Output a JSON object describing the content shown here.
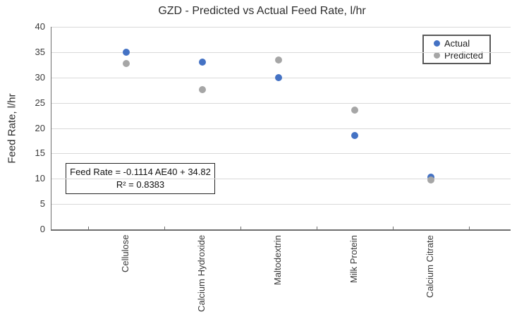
{
  "chart_data": {
    "type": "scatter",
    "title": "GZD - Predicted vs Actual Feed Rate, l/hr",
    "ylabel": "Feed Rate, l/hr",
    "xlabel": "",
    "ylim": [
      0,
      40
    ],
    "ytick_step": 5,
    "grid": "horizontal",
    "legend_position": "top-right",
    "categories": [
      "Cellulose",
      "Calcium Hydroxide",
      "Maltodextrin",
      "Milk Protein",
      "Calcium Citrate"
    ],
    "series": [
      {
        "name": "Actual",
        "color": "#4472C4",
        "values": [
          35.0,
          33.0,
          30.0,
          18.6,
          10.3
        ]
      },
      {
        "name": "Predicted",
        "color": "#A6A6A6",
        "values": [
          32.8,
          27.6,
          33.5,
          23.5,
          9.7
        ]
      }
    ],
    "annotation": {
      "line1": "Feed Rate = -0.1114 AE40 + 34.82",
      "line2": "R² = 0.8383"
    }
  },
  "colors": {
    "gridline": "#D9D9D9",
    "axis": "#6E6E6E",
    "tick_text": "#3A3A3A",
    "title_text": "#2E2E2E",
    "legend_border": "#595959",
    "annotation_border": "#262626"
  }
}
